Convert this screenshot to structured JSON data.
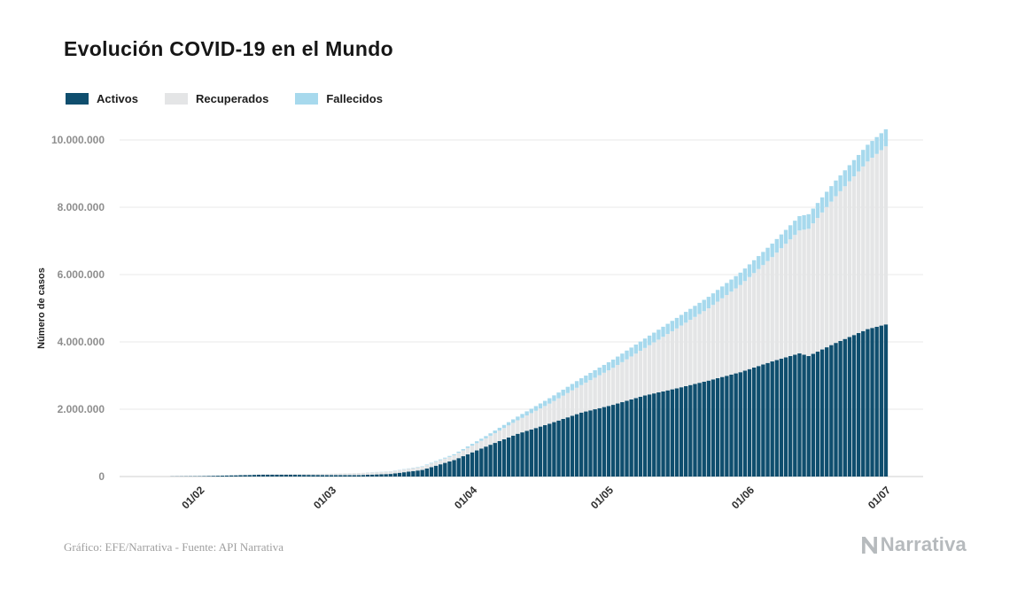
{
  "footer": {
    "credit": "Gráfico: EFE/Narrativa - Fuente: API Narrativa"
  },
  "brand": {
    "name": "Narrativa",
    "color": "#b6babd"
  },
  "chart_data": {
    "type": "bar",
    "stacked": true,
    "bar_interval": "daily",
    "title": "Evolución COVID-19 en el Mundo",
    "xlabel": "",
    "ylabel": "Número de casos",
    "ylim": [
      0,
      10000000
    ],
    "grid": "horizontal",
    "legend_position": "top-left",
    "series": [
      {
        "name": "Activos",
        "color": "#0f4e6e"
      },
      {
        "name": "Recuperados",
        "color": "#e4e5e6"
      },
      {
        "name": "Fallecidos",
        "color": "#a7d9ed"
      }
    ],
    "y_ticks": [
      {
        "value": 0,
        "label": "0"
      },
      {
        "value": 2000000,
        "label": "2.000.000"
      },
      {
        "value": 4000000,
        "label": "4.000.000"
      },
      {
        "value": 6000000,
        "label": "6.000.000"
      },
      {
        "value": 8000000,
        "label": "8.000.000"
      },
      {
        "value": 10000000,
        "label": "10.000.000"
      }
    ],
    "x_ticks": [
      {
        "day": 10,
        "label": "01/02"
      },
      {
        "day": 39,
        "label": "01/03"
      },
      {
        "day": 70,
        "label": "01/04"
      },
      {
        "day": 100,
        "label": "01/05"
      },
      {
        "day": 131,
        "label": "01/06"
      },
      {
        "day": 161,
        "label": "01/07"
      }
    ],
    "anchor_points": [
      {
        "day": 0,
        "activos": 600,
        "recuperados": 30,
        "fallecidos": 17
      },
      {
        "day": 10,
        "activos": 11200,
        "recuperados": 300,
        "fallecidos": 260
      },
      {
        "day": 17,
        "activos": 33000,
        "recuperados": 3000,
        "fallecidos": 800
      },
      {
        "day": 24,
        "activos": 57000,
        "recuperados": 10000,
        "fallecidos": 1700
      },
      {
        "day": 31,
        "activos": 52000,
        "recuperados": 23000,
        "fallecidos": 2500
      },
      {
        "day": 38,
        "activos": 44000,
        "recuperados": 39000,
        "fallecidos": 3000
      },
      {
        "day": 45,
        "activos": 43000,
        "recuperados": 60000,
        "fallecidos": 3600
      },
      {
        "day": 52,
        "activos": 77000,
        "recuperados": 73000,
        "fallecidos": 5800
      },
      {
        "day": 59,
        "activos": 196000,
        "recuperados": 96000,
        "fallecidos": 13000
      },
      {
        "day": 66,
        "activos": 490000,
        "recuperados": 142000,
        "fallecidos": 31000
      },
      {
        "day": 73,
        "activos": 890000,
        "recuperados": 246000,
        "fallecidos": 65000
      },
      {
        "day": 80,
        "activos": 1270000,
        "recuperados": 402000,
        "fallecidos": 109000
      },
      {
        "day": 87,
        "activos": 1570000,
        "recuperados": 596000,
        "fallecidos": 161000
      },
      {
        "day": 94,
        "activos": 1900000,
        "recuperados": 817000,
        "fallecidos": 203000
      },
      {
        "day": 101,
        "activos": 2130000,
        "recuperados": 1100000,
        "fallecidos": 245000
      },
      {
        "day": 108,
        "activos": 2410000,
        "recuperados": 1410000,
        "fallecidos": 280000
      },
      {
        "day": 115,
        "activos": 2620000,
        "recuperados": 1780000,
        "fallecidos": 313000
      },
      {
        "day": 122,
        "activos": 2850000,
        "recuperados": 2150000,
        "fallecidos": 340000
      },
      {
        "day": 129,
        "activos": 3100000,
        "recuperados": 2590000,
        "fallecidos": 368000
      },
      {
        "day": 136,
        "activos": 3420000,
        "recuperados": 3100000,
        "fallecidos": 400000
      },
      {
        "day": 142,
        "activos": 3660000,
        "recuperados": 3650000,
        "fallecidos": 428000
      },
      {
        "day": 144,
        "activos": 3580000,
        "recuperados": 3780000,
        "fallecidos": 434000
      },
      {
        "day": 150,
        "activos": 3970000,
        "recuperados": 4360000,
        "fallecidos": 465000
      },
      {
        "day": 157,
        "activos": 4380000,
        "recuperados": 4980000,
        "fallecidos": 497000
      },
      {
        "day": 161,
        "activos": 4520000,
        "recuperados": 5290000,
        "fallecidos": 505000
      }
    ]
  }
}
